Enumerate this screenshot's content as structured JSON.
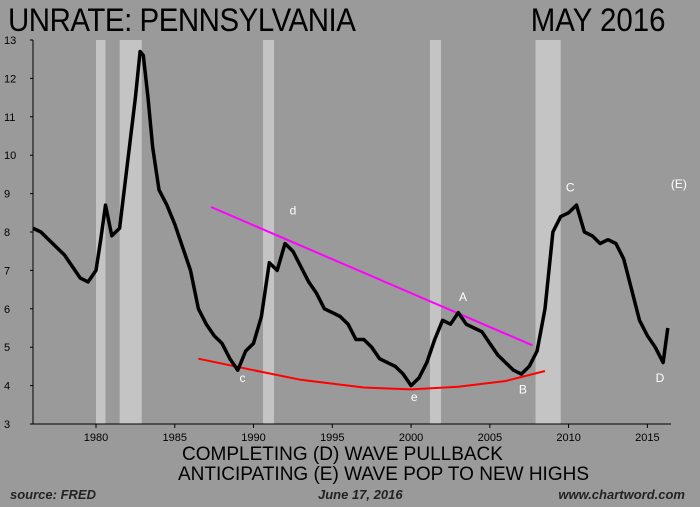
{
  "header": {
    "title_left": "UNRATE: PENNSYLVANIA",
    "title_right": "MAY 2016"
  },
  "notes": {
    "line1": "COMPLETING (D) WAVE PULLBACK",
    "line2": "ANTICIPATING (E) WAVE POP TO NEW HIGHS"
  },
  "footer": {
    "source": "source: FRED",
    "date": "June 17, 2016",
    "site": "www.chartword.com"
  },
  "colors": {
    "background": "#9a9a9a",
    "line": "#000000",
    "recession": "#c4c4c4",
    "trend_upper": "#ff00ff",
    "trend_lower": "#ff0000",
    "label": "#ffffff"
  },
  "chart_data": {
    "type": "line",
    "title": "UNRATE: PENNSYLVANIA",
    "xlim": [
      1976,
      2016.5
    ],
    "ylim": [
      3,
      13
    ],
    "x_ticks": [
      1980,
      1985,
      1990,
      1995,
      2000,
      2005,
      2010,
      2015
    ],
    "y_ticks": [
      3,
      4,
      5,
      6,
      7,
      8,
      9,
      10,
      11,
      12,
      13
    ],
    "grid": false,
    "recessions": [
      [
        1980.0,
        1980.6
      ],
      [
        1981.5,
        1982.9
      ],
      [
        1990.6,
        1991.3
      ],
      [
        2001.2,
        2001.9
      ],
      [
        2007.9,
        2009.5
      ]
    ],
    "series": [
      {
        "x": [
          1976.0,
          1976.5,
          1977.0,
          1977.5,
          1978.0,
          1978.5,
          1979.0,
          1979.5,
          1980.0,
          1980.3,
          1980.6,
          1981.0,
          1981.5,
          1982.0,
          1982.5,
          1982.8,
          1983.0,
          1983.3,
          1983.6,
          1984.0,
          1984.5,
          1985.0,
          1985.5,
          1986.0,
          1986.5,
          1987.0,
          1987.5,
          1988.0,
          1988.5,
          1989.0,
          1989.5,
          1990.0,
          1990.5,
          1991.0,
          1991.5,
          1992.0,
          1992.5,
          1993.0,
          1993.5,
          1994.0,
          1994.5,
          1995.0,
          1995.5,
          1996.0,
          1996.5,
          1997.0,
          1997.5,
          1998.0,
          1998.5,
          1999.0,
          1999.5,
          2000.0,
          2000.5,
          2001.0,
          2001.5,
          2002.0,
          2002.5,
          2003.0,
          2003.5,
          2004.0,
          2004.5,
          2005.0,
          2005.5,
          2006.0,
          2006.5,
          2007.0,
          2007.5,
          2008.0,
          2008.5,
          2009.0,
          2009.5,
          2010.0,
          2010.5,
          2011.0,
          2011.5,
          2012.0,
          2012.5,
          2013.0,
          2013.5,
          2014.0,
          2014.5,
          2015.0,
          2015.5,
          2016.0,
          2016.3
        ],
        "values": [
          8.1,
          8.0,
          7.8,
          7.6,
          7.4,
          7.1,
          6.8,
          6.7,
          7.0,
          7.8,
          8.7,
          7.9,
          8.1,
          9.8,
          11.5,
          12.7,
          12.6,
          11.5,
          10.2,
          9.1,
          8.7,
          8.2,
          7.6,
          7.0,
          6.0,
          5.6,
          5.3,
          5.1,
          4.7,
          4.4,
          4.9,
          5.1,
          5.8,
          7.2,
          7.0,
          7.7,
          7.5,
          7.1,
          6.7,
          6.4,
          6.0,
          5.9,
          5.8,
          5.6,
          5.2,
          5.2,
          5.0,
          4.7,
          4.6,
          4.5,
          4.3,
          4.0,
          4.2,
          4.6,
          5.2,
          5.7,
          5.6,
          5.9,
          5.6,
          5.5,
          5.4,
          5.1,
          4.8,
          4.6,
          4.4,
          4.3,
          4.5,
          4.9,
          6.0,
          8.0,
          8.4,
          8.5,
          8.7,
          8.0,
          7.9,
          7.7,
          7.8,
          7.7,
          7.3,
          6.5,
          5.7,
          5.3,
          5.0,
          4.6,
          5.5
        ]
      }
    ],
    "trend_lines": [
      {
        "color": "#ff00ff",
        "x": [
          1987.3,
          2007.7
        ],
        "y": [
          8.65,
          5.05
        ]
      },
      {
        "color": "#ff0000",
        "x": [
          1986.5,
          1990,
          1993,
          1997,
          2000,
          2003,
          2006,
          2008.5
        ],
        "y": [
          4.7,
          4.4,
          4.15,
          3.95,
          3.9,
          3.97,
          4.12,
          4.38
        ]
      }
    ],
    "annotations": [
      {
        "text": "c",
        "x": 1989.3,
        "y": 4.1
      },
      {
        "text": "d",
        "x": 1992.5,
        "y": 8.45
      },
      {
        "text": "e",
        "x": 2000.2,
        "y": 3.6
      },
      {
        "text": "A",
        "x": 2003.3,
        "y": 6.2
      },
      {
        "text": "B",
        "x": 2007.1,
        "y": 3.8
      },
      {
        "text": "C",
        "x": 2010.1,
        "y": 9.05
      },
      {
        "text": "D",
        "x": 2015.8,
        "y": 4.1
      },
      {
        "text": "(E)",
        "x": 2017.0,
        "y": 9.15
      }
    ]
  }
}
